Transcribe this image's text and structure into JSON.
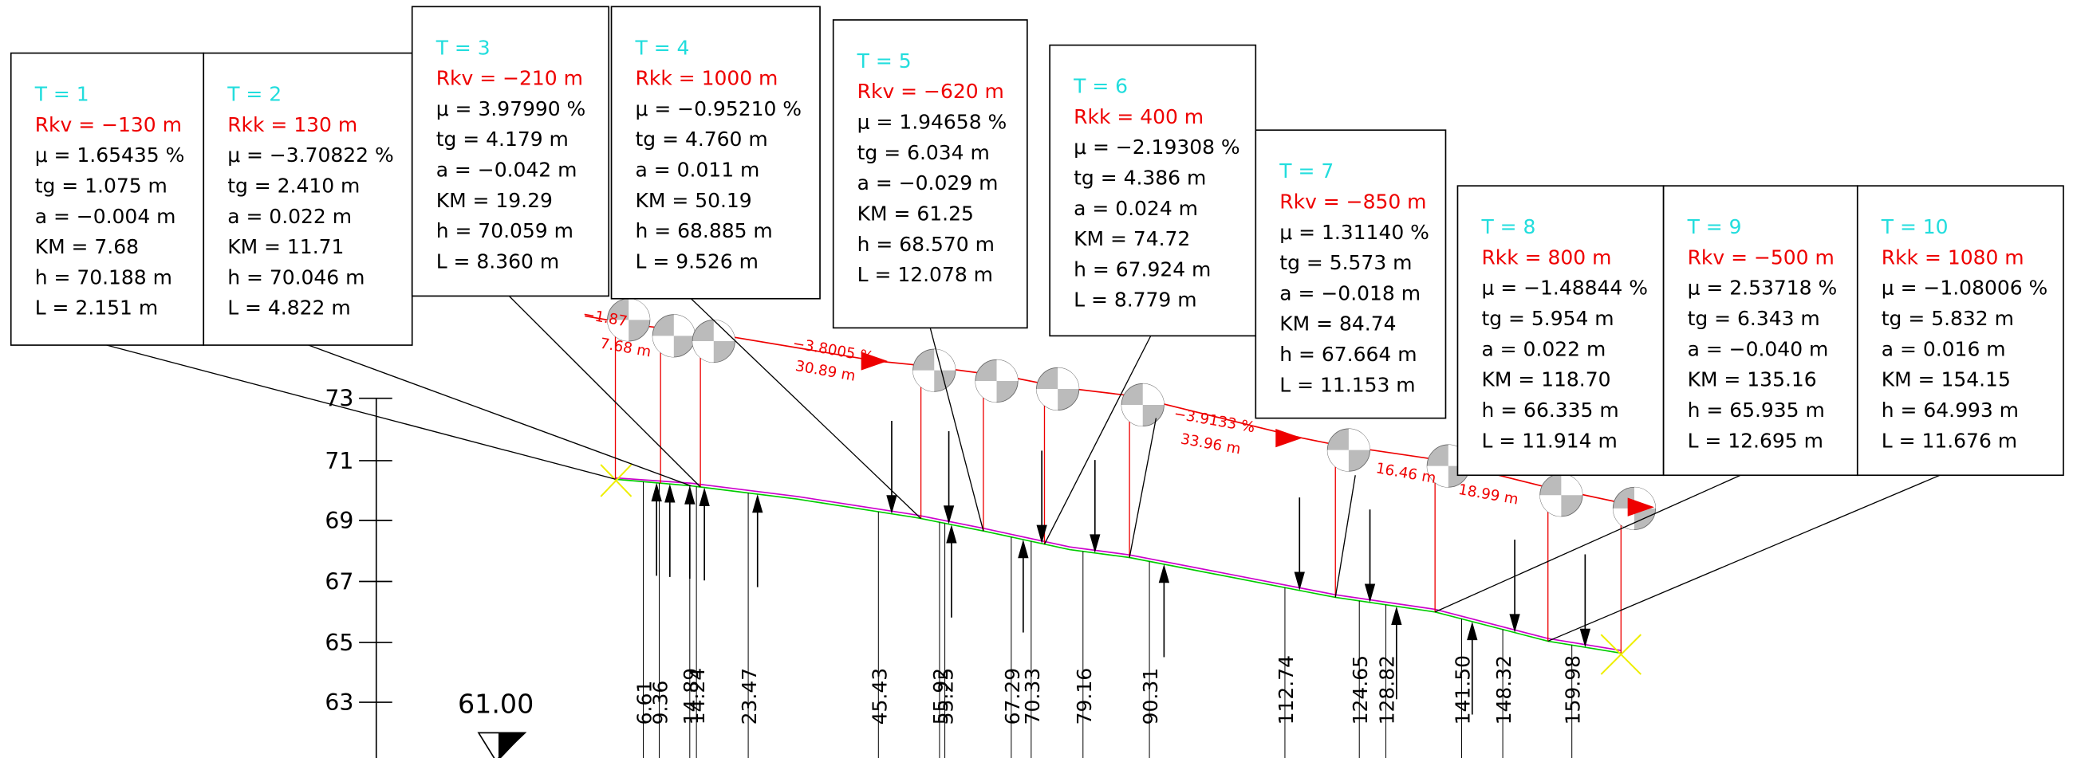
{
  "boxes": [
    {
      "lines": [
        "T = 1",
        "Rkv = −130 m",
        "μ = 1.65435 %",
        "tg = 1.075 m",
        "a = −0.004 m",
        "KM = 7.68",
        "h = 70.188 m",
        "L = 2.151 m"
      ]
    },
    {
      "lines": [
        "T = 2",
        "Rkk = 130 m",
        "μ = −3.70822 %",
        "tg = 2.410 m",
        "a = 0.022 m",
        "KM = 11.71",
        "h = 70.046 m",
        "L = 4.822 m"
      ]
    },
    {
      "lines": [
        "T = 3",
        "Rkv = −210 m",
        "μ = 3.97990 %",
        "tg = 4.179 m",
        "a = −0.042 m",
        "KM = 19.29",
        "h = 70.059 m",
        "L = 8.360 m"
      ]
    },
    {
      "lines": [
        "T = 4",
        "Rkk = 1000 m",
        "μ = −0.95210 %",
        "tg = 4.760 m",
        "a = 0.011 m",
        "KM = 50.19",
        "h = 68.885 m",
        "L = 9.526 m"
      ]
    },
    {
      "lines": [
        "T = 5",
        "Rkv = −620 m",
        "μ = 1.94658 %",
        "tg = 6.034 m",
        "a = −0.029 m",
        "KM = 61.25",
        "h = 68.570 m",
        "L = 12.078 m"
      ]
    },
    {
      "lines": [
        "T = 6",
        "Rkk = 400 m",
        "μ = −2.19308 %",
        "tg = 4.386 m",
        "a = 0.024 m",
        "KM = 74.72",
        "h = 67.924 m",
        "L = 8.779 m"
      ]
    },
    {
      "lines": [
        "T = 7",
        "Rkv = −850 m",
        "μ = 1.31140 %",
        "tg = 5.573 m",
        "a = −0.018 m",
        "KM = 84.74",
        "h = 67.664 m",
        "L = 11.153 m"
      ]
    },
    {
      "lines": [
        "T = 8",
        "Rkk = 800 m",
        "μ = −1.48844 %",
        "tg = 5.954 m",
        "a = 0.022 m",
        "KM = 118.70",
        "h = 66.335 m",
        "L = 11.914 m"
      ]
    },
    {
      "lines": [
        "T = 9",
        "Rkv = −500 m",
        "μ = 2.53718 %",
        "tg = 6.343 m",
        "a = −0.040 m",
        "KM = 135.16",
        "h = 65.935 m",
        "L = 12.695 m"
      ]
    },
    {
      "lines": [
        "T = 10",
        "Rkk = 1080 m",
        "μ = −1.08006 %",
        "tg = 5.832 m",
        "a = 0.016 m",
        "KM = 154.15",
        "h = 64.993 m",
        "L = 11.676 m"
      ]
    }
  ],
  "elevation_labels": [
    "73",
    "71",
    "69",
    "67",
    "65",
    "63"
  ],
  "datum": "61.00",
  "stations": [
    "6.61",
    "9.36",
    "14.89",
    "14.24",
    "23.47",
    "45.43",
    "55.92",
    "55.25",
    "67.29",
    "70.33",
    "79.16",
    "90.31",
    "112.74",
    "124.65",
    "128.82",
    "141.50",
    "148.32",
    "159.98"
  ],
  "grade_labels": [
    "−1.87",
    "7.68 m",
    "−3.8005 %",
    "30.89 m",
    "−3.9133 %",
    "33.96 m",
    "16.46 m",
    "18.99 m"
  ]
}
